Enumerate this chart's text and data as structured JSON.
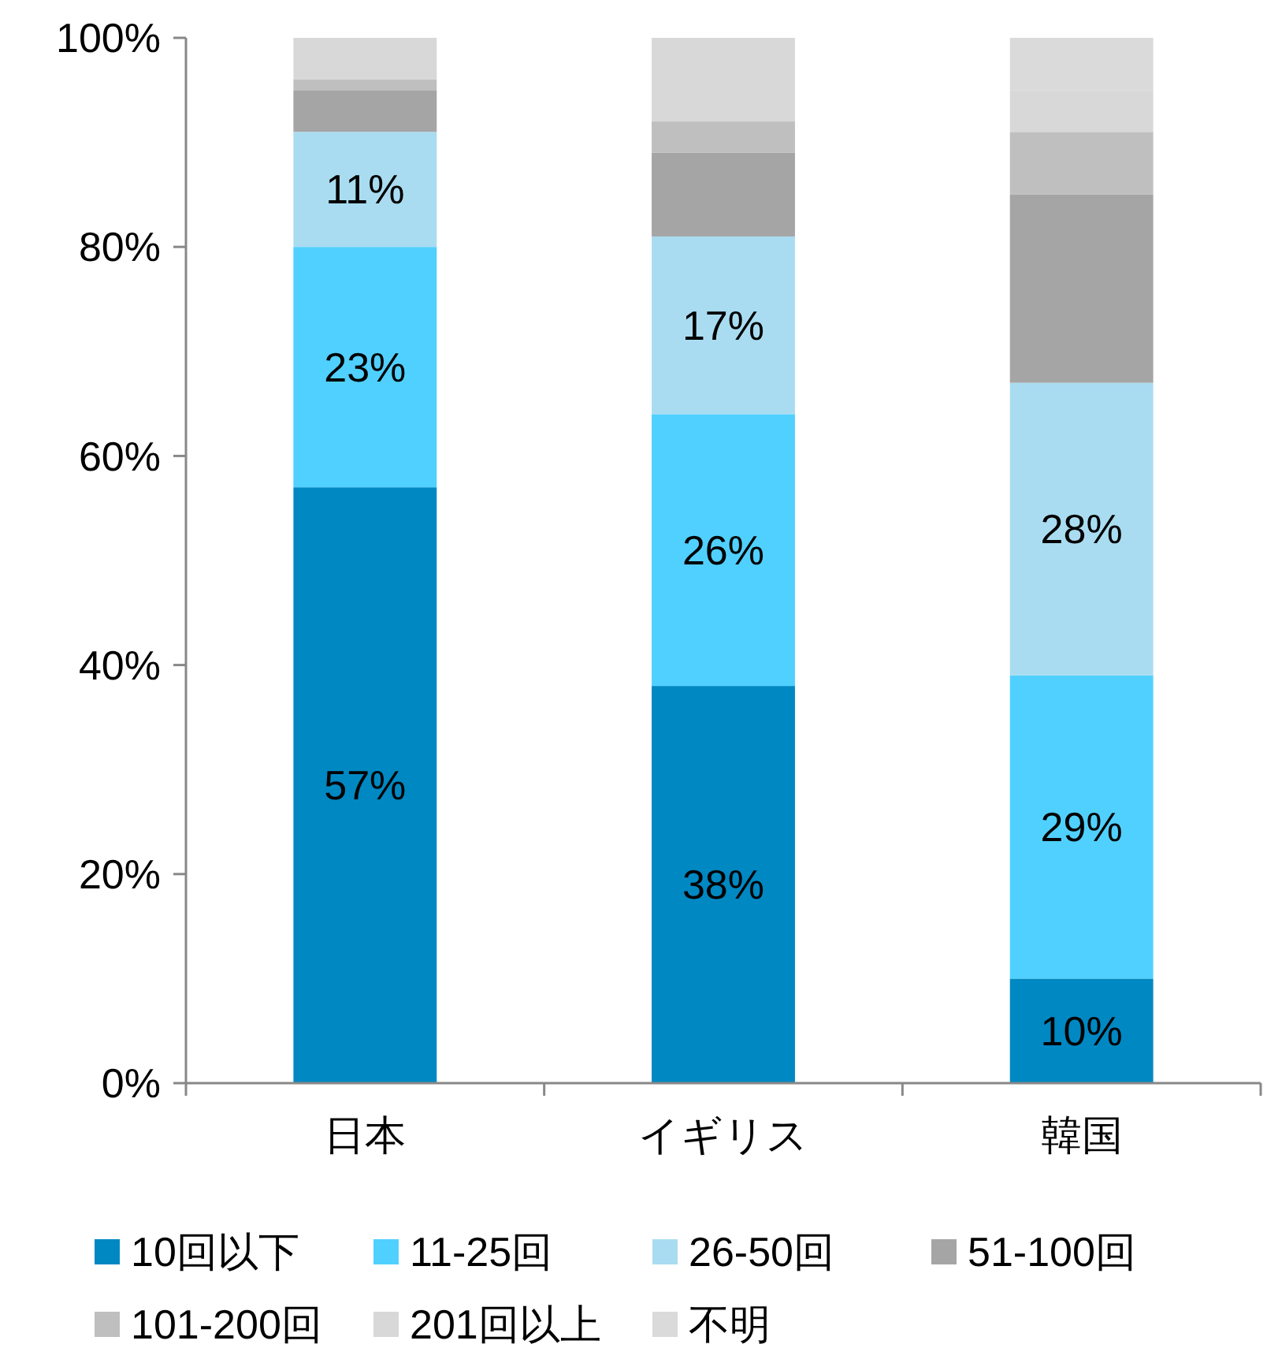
{
  "chart_data": {
    "type": "bar",
    "stacked": true,
    "categories": [
      "日本",
      "イギリス",
      "韓国"
    ],
    "series": [
      {
        "name": "10回以下",
        "color": "#0088c2",
        "values": [
          57,
          38,
          10
        ],
        "value_labels": [
          "57%",
          "38%",
          "10%"
        ]
      },
      {
        "name": "11-25回",
        "color": "#50d0ff",
        "values": [
          23,
          26,
          29
        ],
        "value_labels": [
          "23%",
          "26%",
          "29%"
        ]
      },
      {
        "name": "26-50回",
        "color": "#a9dcf1",
        "values": [
          11,
          17,
          28
        ],
        "value_labels": [
          "11%",
          "17%",
          "28%"
        ]
      },
      {
        "name": "51-100回",
        "color": "#a5a5a5",
        "values": [
          4,
          8,
          18
        ]
      },
      {
        "name": "101-200回",
        "color": "#bfbfbf",
        "values": [
          1,
          3,
          6
        ]
      },
      {
        "name": "201回以上",
        "color": "#d8d8d8",
        "values": [
          4,
          8,
          4
        ]
      },
      {
        "name": "不明",
        "color": "#dadada",
        "values": [
          0,
          0,
          5
        ]
      }
    ],
    "ylim": [
      0,
      100
    ],
    "yticks": [
      {
        "value": 0,
        "label": "0%"
      },
      {
        "value": 20,
        "label": "20%"
      },
      {
        "value": 40,
        "label": "40%"
      },
      {
        "value": 60,
        "label": "60%"
      },
      {
        "value": 80,
        "label": "80%"
      },
      {
        "value": 100,
        "label": "100%"
      }
    ],
    "legend": "bottom"
  }
}
